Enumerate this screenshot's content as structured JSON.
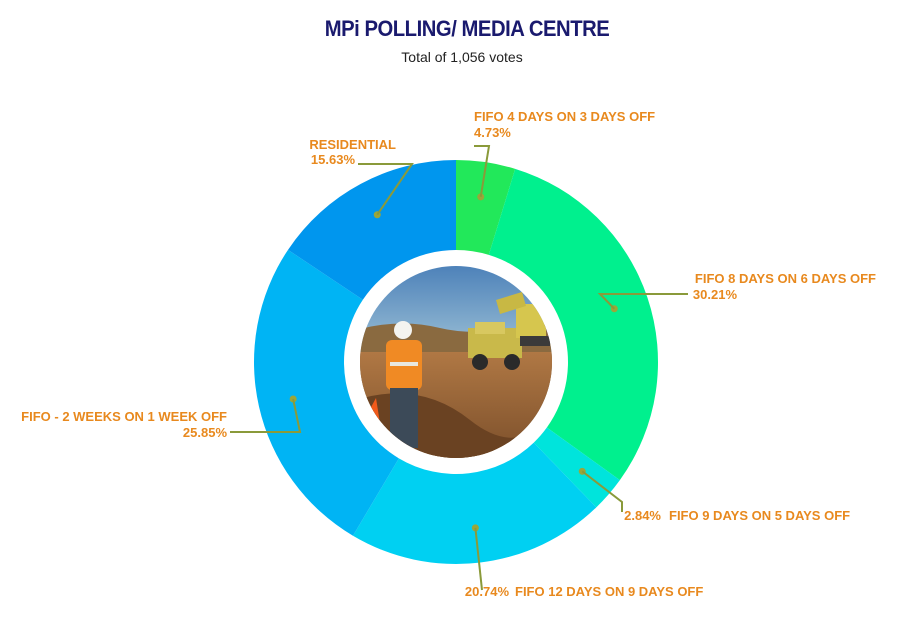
{
  "header": {
    "title": "MPi POLLING/ MEDIA CENTRE",
    "subtitle": "Total of 1,056 votes"
  },
  "colors": {
    "label": "#e8891e",
    "leader": "#8a9a3a",
    "ring_inner": "#ffffff"
  },
  "center_image": {
    "icon": "mining-site-photo"
  },
  "chart_data": {
    "type": "pie",
    "title": "MPi POLLING/ MEDIA CENTRE",
    "subtitle": "Total of 1,056 votes",
    "series": [
      {
        "name": "FIFO 4 DAYS ON 3 DAYS OFF",
        "value": 4.73,
        "label": "4.73%",
        "color": "#22e85a"
      },
      {
        "name": "FIFO 8 DAYS ON 6 DAYS OFF",
        "value": 30.21,
        "label": "30.21%",
        "color": "#00f08e"
      },
      {
        "name": "FIFO 9 DAYS ON 5 DAYS OFF",
        "value": 2.84,
        "label": "2.84%",
        "color": "#00e4dc"
      },
      {
        "name": "FIFO 12 DAYS ON 9 DAYS OFF",
        "value": 20.74,
        "label": "20.74%",
        "color": "#00d0f2"
      },
      {
        "name": "FIFO - 2 WEEKS ON 1 WEEK OFF",
        "value": 25.85,
        "label": "25.85%",
        "color": "#00b4f4"
      },
      {
        "name": "RESIDENTIAL",
        "value": 15.63,
        "label": "15.63%",
        "color": "#0096ee"
      }
    ]
  }
}
